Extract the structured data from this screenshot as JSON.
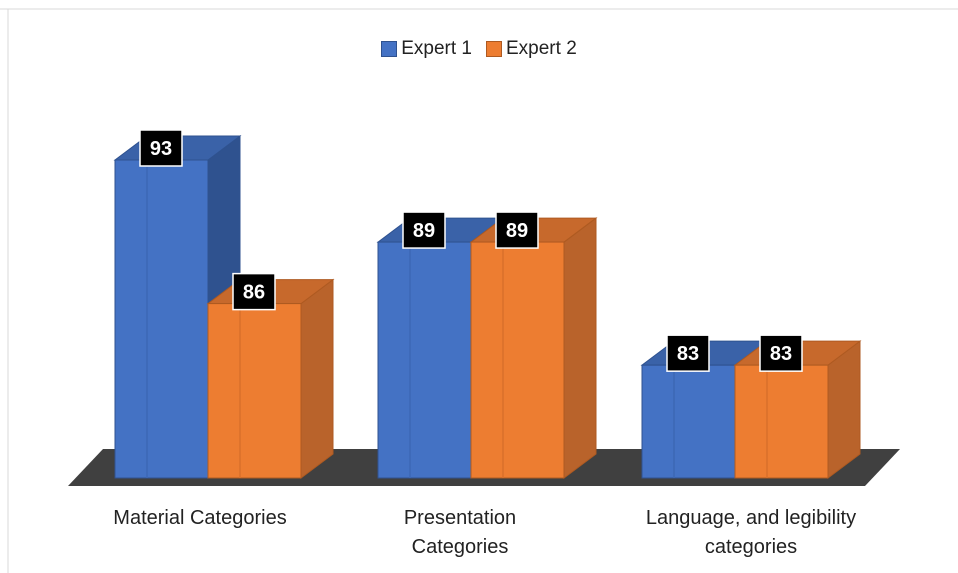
{
  "chart_data": {
    "type": "bar",
    "categories": [
      "Material Categories",
      "Presentation Categories",
      "Language, and legibility categories"
    ],
    "category_lines": [
      [
        "Material Categories"
      ],
      [
        "Presentation",
        "Categories"
      ],
      [
        "Language, and legibility",
        "categories"
      ]
    ],
    "series": [
      {
        "name": "Expert 1",
        "values": [
          93,
          89,
          83
        ],
        "color": "#4472C4"
      },
      {
        "name": "Expert 2",
        "values": [
          86,
          89,
          83
        ],
        "color": "#ED7D31"
      }
    ],
    "ylim": [
      77.5,
      95
    ],
    "grid": false,
    "legend_position": "top-center",
    "style": "3d-column"
  }
}
